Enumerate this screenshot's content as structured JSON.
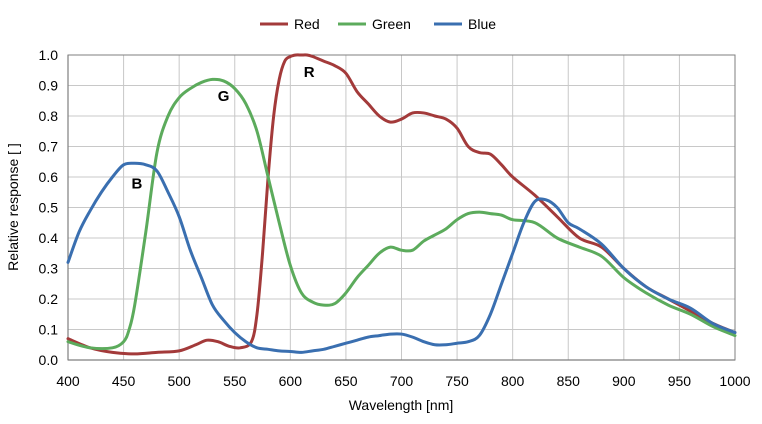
{
  "chart_data": {
    "type": "line",
    "title": "",
    "xlabel": "Wavelength [nm]",
    "ylabel": "Relative response [ ]",
    "xlim": [
      400,
      1000
    ],
    "ylim": [
      0.0,
      1.0
    ],
    "x_ticks": [
      400,
      450,
      500,
      550,
      600,
      650,
      700,
      750,
      800,
      850,
      900,
      950,
      1000
    ],
    "y_ticks": [
      0.0,
      0.1,
      0.2,
      0.3,
      0.4,
      0.5,
      0.6,
      0.7,
      0.8,
      0.9,
      1.0
    ],
    "x_tick_labels": [
      "400",
      "450",
      "500",
      "550",
      "600",
      "650",
      "700",
      "750",
      "800",
      "850",
      "900",
      "950",
      "1000"
    ],
    "y_tick_labels": [
      "0.0",
      "0.1",
      "0.2",
      "0.3",
      "0.4",
      "0.5",
      "0.6",
      "0.7",
      "0.8",
      "0.9",
      "1.0"
    ],
    "grid": true,
    "legend_position": "top-center",
    "series": [
      {
        "name": "Red",
        "color": "#a33a3a",
        "x": [
          400,
          420,
          440,
          460,
          480,
          500,
          515,
          525,
          535,
          545,
          555,
          565,
          570,
          575,
          580,
          585,
          590,
          595,
          600,
          605,
          610,
          615,
          620,
          630,
          640,
          650,
          660,
          670,
          680,
          690,
          700,
          710,
          720,
          730,
          740,
          750,
          760,
          770,
          780,
          790,
          800,
          820,
          840,
          860,
          880,
          900,
          920,
          940,
          960,
          980,
          1000
        ],
        "y": [
          0.07,
          0.04,
          0.025,
          0.02,
          0.025,
          0.03,
          0.05,
          0.065,
          0.06,
          0.045,
          0.04,
          0.06,
          0.15,
          0.35,
          0.6,
          0.8,
          0.92,
          0.98,
          0.995,
          1.0,
          1.0,
          1.0,
          0.995,
          0.98,
          0.965,
          0.94,
          0.88,
          0.84,
          0.8,
          0.78,
          0.79,
          0.81,
          0.81,
          0.8,
          0.79,
          0.76,
          0.7,
          0.68,
          0.675,
          0.64,
          0.6,
          0.54,
          0.47,
          0.4,
          0.37,
          0.3,
          0.24,
          0.2,
          0.16,
          0.12,
          0.09
        ]
      },
      {
        "name": "Green",
        "color": "#5cab5c",
        "x": [
          400,
          420,
          440,
          450,
          455,
          460,
          470,
          480,
          490,
          500,
          510,
          520,
          530,
          540,
          550,
          560,
          570,
          580,
          590,
          600,
          610,
          620,
          630,
          640,
          650,
          660,
          670,
          680,
          690,
          700,
          710,
          720,
          730,
          740,
          750,
          760,
          770,
          780,
          790,
          800,
          820,
          840,
          860,
          880,
          900,
          920,
          940,
          960,
          980,
          1000
        ],
        "y": [
          0.06,
          0.04,
          0.04,
          0.06,
          0.1,
          0.18,
          0.42,
          0.68,
          0.8,
          0.86,
          0.89,
          0.91,
          0.92,
          0.915,
          0.89,
          0.84,
          0.75,
          0.6,
          0.45,
          0.31,
          0.22,
          0.19,
          0.18,
          0.185,
          0.22,
          0.27,
          0.31,
          0.35,
          0.37,
          0.36,
          0.36,
          0.39,
          0.41,
          0.43,
          0.46,
          0.48,
          0.485,
          0.48,
          0.475,
          0.46,
          0.45,
          0.4,
          0.37,
          0.34,
          0.27,
          0.22,
          0.18,
          0.15,
          0.11,
          0.08
        ]
      },
      {
        "name": "Blue",
        "color": "#3a6fb0",
        "x": [
          400,
          410,
          420,
          430,
          440,
          450,
          460,
          470,
          480,
          490,
          500,
          510,
          520,
          530,
          540,
          550,
          560,
          570,
          580,
          590,
          600,
          610,
          620,
          630,
          640,
          650,
          660,
          670,
          680,
          690,
          700,
          710,
          720,
          730,
          740,
          750,
          760,
          770,
          780,
          790,
          800,
          810,
          820,
          830,
          840,
          850,
          860,
          880,
          900,
          920,
          940,
          960,
          980,
          1000
        ],
        "y": [
          0.32,
          0.42,
          0.49,
          0.55,
          0.6,
          0.64,
          0.645,
          0.64,
          0.62,
          0.55,
          0.47,
          0.36,
          0.27,
          0.18,
          0.13,
          0.09,
          0.06,
          0.04,
          0.035,
          0.03,
          0.028,
          0.025,
          0.03,
          0.035,
          0.045,
          0.055,
          0.065,
          0.075,
          0.08,
          0.085,
          0.085,
          0.075,
          0.06,
          0.05,
          0.05,
          0.055,
          0.06,
          0.08,
          0.15,
          0.25,
          0.35,
          0.45,
          0.52,
          0.525,
          0.5,
          0.45,
          0.43,
          0.38,
          0.3,
          0.24,
          0.2,
          0.17,
          0.12,
          0.09
        ]
      }
    ],
    "annotations": [
      {
        "text": "R",
        "x": 617,
        "y": 0.945
      },
      {
        "text": "G",
        "x": 540,
        "y": 0.865
      },
      {
        "text": "B",
        "x": 462,
        "y": 0.578
      }
    ],
    "colors": {
      "grid": "#c8c8c8",
      "axis": "#7f7f7f",
      "background": "#ffffff"
    }
  }
}
